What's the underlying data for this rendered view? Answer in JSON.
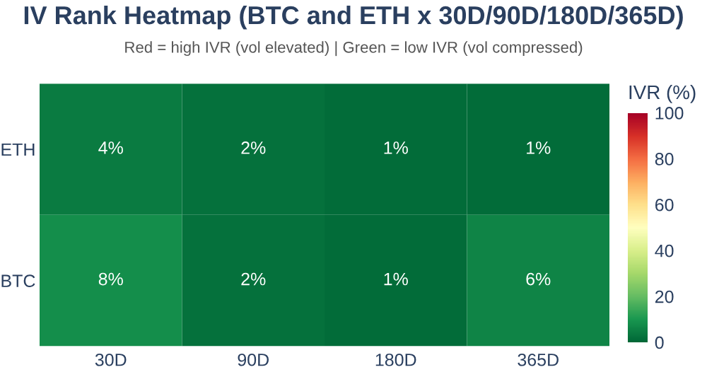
{
  "chart_data": {
    "type": "heatmap",
    "title": "IV Rank Heatmap (BTC and ETH x 30D/90D/180D/365D)",
    "subtitle": "Red = high IVR (vol elevated) | Green = low IVR (vol compressed)",
    "clabel": "IVR (%)",
    "categories": [
      "30D",
      "90D",
      "180D",
      "365D"
    ],
    "y_categories": [
      "ETH",
      "BTC"
    ],
    "cells": [
      [
        4,
        2,
        1,
        1
      ],
      [
        8,
        2,
        1,
        6
      ]
    ],
    "cell_labels": [
      [
        "4%",
        "2%",
        "1%",
        "1%"
      ],
      [
        "8%",
        "2%",
        "1%",
        "6%"
      ]
    ],
    "clim": [
      0,
      100
    ],
    "cticks": [
      0,
      20,
      40,
      60,
      80,
      100
    ]
  }
}
